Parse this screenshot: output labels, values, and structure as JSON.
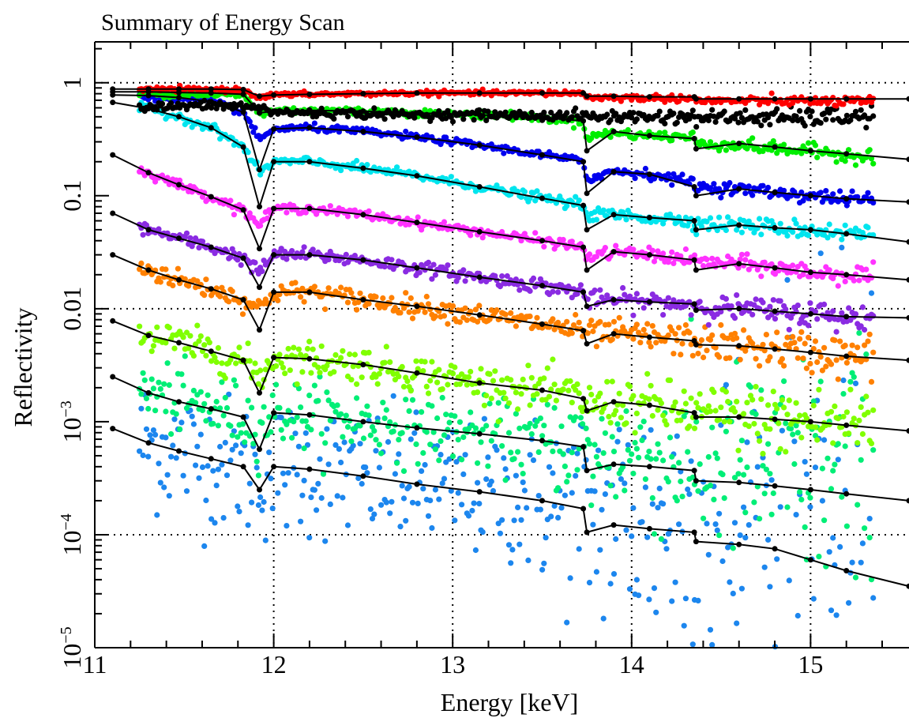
{
  "chart_data": {
    "type": "scatter",
    "title": "Summary of Energy Scan",
    "xlabel": "Energy [keV]",
    "ylabel": "Reflectivity",
    "xlim": [
      11.0,
      15.55
    ],
    "ylim": [
      1e-05,
      2.3
    ],
    "yscale": "log",
    "grid": "dotted lines at x = 12, 13, 14, 15 and y = 1, 0.01, 1e-4",
    "x_ticks": [
      {
        "value": 11,
        "label": "11"
      },
      {
        "value": 12,
        "label": "12"
      },
      {
        "value": 13,
        "label": "13"
      },
      {
        "value": 14,
        "label": "14"
      },
      {
        "value": 15,
        "label": "15"
      }
    ],
    "y_ticks": [
      {
        "value": 1,
        "base": "1",
        "exp": ""
      },
      {
        "value": 0.1,
        "base": "0.1",
        "exp": ""
      },
      {
        "value": 0.01,
        "base": "0.01",
        "exp": ""
      },
      {
        "value": 0.001,
        "base": "10",
        "exp": "−3"
      },
      {
        "value": 0.0001,
        "base": "10",
        "exp": "−4"
      },
      {
        "value": 1e-05,
        "base": "10",
        "exp": "−5"
      }
    ],
    "measured_x_range": [
      11.25,
      15.35
    ],
    "model_energies": [
      11.1,
      11.3,
      11.47,
      11.65,
      11.83,
      11.92,
      12.0,
      12.2,
      12.5,
      12.8,
      13.15,
      13.5,
      13.73,
      13.75,
      13.9,
      14.1,
      14.35,
      14.36,
      14.6,
      14.8,
      15.0,
      15.2,
      15.55
    ],
    "series": [
      {
        "color": "#ff0000",
        "noise": 0.01,
        "measured": [
          0.87,
          0.87,
          0.87,
          0.87,
          0.86,
          0.74,
          0.78,
          0.79,
          0.8,
          0.81,
          0.81,
          0.81,
          0.81,
          0.74,
          0.74,
          0.73,
          0.73,
          0.69,
          0.69,
          0.69,
          0.69,
          0.68,
          0.68
        ],
        "model": [
          0.88,
          0.88,
          0.88,
          0.88,
          0.87,
          0.76,
          0.78,
          0.79,
          0.8,
          0.81,
          0.81,
          0.81,
          0.81,
          0.76,
          0.76,
          0.75,
          0.75,
          0.72,
          0.72,
          0.72,
          0.72,
          0.72,
          0.72
        ]
      },
      {
        "color": "#000000",
        "noise": 0.02,
        "measured": [
          0.56,
          0.6,
          0.62,
          0.63,
          0.62,
          0.6,
          0.55,
          0.54,
          0.53,
          0.52,
          0.52,
          0.51,
          0.51,
          0.5,
          0.5,
          0.5,
          0.5,
          0.49,
          0.49,
          0.49,
          0.49,
          0.5,
          0.51
        ],
        "model": null
      },
      {
        "color": "#00ee00",
        "noise": 0.015,
        "measured": [
          0.8,
          0.8,
          0.8,
          0.79,
          0.78,
          0.53,
          0.57,
          0.57,
          0.56,
          0.54,
          0.52,
          0.49,
          0.45,
          0.33,
          0.36,
          0.34,
          0.33,
          0.29,
          0.28,
          0.26,
          0.25,
          0.23,
          0.22
        ],
        "model": [
          0.83,
          0.83,
          0.82,
          0.81,
          0.79,
          0.54,
          0.56,
          0.57,
          0.56,
          0.54,
          0.52,
          0.49,
          0.46,
          0.25,
          0.37,
          0.34,
          0.32,
          0.26,
          0.29,
          0.27,
          0.25,
          0.235,
          0.21
        ]
      },
      {
        "color": "#0000ee",
        "noise": 0.015,
        "measured": [
          0.76,
          0.75,
          0.73,
          0.68,
          0.55,
          0.31,
          0.39,
          0.4,
          0.37,
          0.33,
          0.28,
          0.23,
          0.2,
          0.14,
          0.165,
          0.155,
          0.13,
          0.12,
          0.115,
          0.107,
          0.1,
          0.094,
          0.09
        ],
        "model": [
          0.78,
          0.77,
          0.74,
          0.68,
          0.55,
          0.17,
          0.39,
          0.4,
          0.37,
          0.33,
          0.28,
          0.23,
          0.2,
          0.105,
          0.163,
          0.155,
          0.12,
          0.1,
          0.115,
          0.107,
          0.1,
          0.094,
          0.088
        ]
      },
      {
        "color": "#00e5ee",
        "noise": 0.02,
        "measured": [
          0.63,
          0.59,
          0.5,
          0.4,
          0.27,
          0.16,
          0.2,
          0.2,
          0.175,
          0.15,
          0.12,
          0.095,
          0.082,
          0.068,
          0.068,
          0.064,
          0.06,
          0.057,
          0.055,
          0.052,
          0.05,
          0.047,
          0.044
        ],
        "model": [
          0.67,
          0.59,
          0.5,
          0.4,
          0.27,
          0.08,
          0.2,
          0.2,
          0.175,
          0.15,
          0.12,
          0.095,
          0.082,
          0.05,
          0.068,
          0.064,
          0.06,
          0.05,
          0.055,
          0.052,
          0.05,
          0.046,
          0.039
        ]
      },
      {
        "color": "#ff33ff",
        "noise": 0.02,
        "measured": [
          0.19,
          0.16,
          0.125,
          0.098,
          0.075,
          0.055,
          0.077,
          0.077,
          0.068,
          0.058,
          0.048,
          0.04,
          0.035,
          0.028,
          0.032,
          0.03,
          0.027,
          0.026,
          0.025,
          0.023,
          0.021,
          0.02,
          0.019
        ],
        "model": [
          0.23,
          0.16,
          0.125,
          0.098,
          0.075,
          0.034,
          0.077,
          0.077,
          0.068,
          0.058,
          0.048,
          0.04,
          0.035,
          0.022,
          0.032,
          0.03,
          0.027,
          0.022,
          0.025,
          0.023,
          0.021,
          0.02,
          0.018
        ]
      },
      {
        "color": "#8a2be2",
        "noise": 0.03,
        "measured": [
          0.063,
          0.05,
          0.042,
          0.035,
          0.028,
          0.021,
          0.03,
          0.03,
          0.027,
          0.023,
          0.019,
          0.016,
          0.014,
          0.012,
          0.012,
          0.0115,
          0.011,
          0.0105,
          0.01,
          0.0095,
          0.009,
          0.0085,
          0.008
        ],
        "model": [
          0.07,
          0.05,
          0.042,
          0.035,
          0.028,
          0.0155,
          0.03,
          0.03,
          0.027,
          0.023,
          0.019,
          0.016,
          0.014,
          0.0105,
          0.012,
          0.0115,
          0.011,
          0.0097,
          0.01,
          0.0095,
          0.009,
          0.0085,
          0.0083
        ]
      },
      {
        "color": "#ff8000",
        "noise": 0.045,
        "measured": [
          0.026,
          0.022,
          0.018,
          0.015,
          0.012,
          0.01,
          0.014,
          0.014,
          0.012,
          0.0105,
          0.0088,
          0.0073,
          0.0064,
          0.006,
          0.006,
          0.0056,
          0.0052,
          0.005,
          0.0047,
          0.0044,
          0.0041,
          0.0038,
          0.0036
        ],
        "model": [
          0.03,
          0.022,
          0.018,
          0.015,
          0.012,
          0.0065,
          0.014,
          0.014,
          0.012,
          0.0105,
          0.0088,
          0.0073,
          0.0064,
          0.0049,
          0.006,
          0.0056,
          0.0052,
          0.0048,
          0.0047,
          0.0044,
          0.0041,
          0.0038,
          0.0035
        ]
      },
      {
        "color": "#80ff00",
        "noise": 0.08,
        "measured": [
          0.0065,
          0.0058,
          0.005,
          0.0042,
          0.0035,
          0.0025,
          0.0037,
          0.0036,
          0.0032,
          0.0027,
          0.0022,
          0.0019,
          0.0016,
          0.0014,
          0.0015,
          0.0014,
          0.0012,
          0.0012,
          0.0011,
          0.00105,
          0.001,
          0.00098,
          0.00095
        ],
        "model": [
          0.0078,
          0.0058,
          0.005,
          0.0042,
          0.0035,
          0.0018,
          0.0037,
          0.0036,
          0.0032,
          0.0027,
          0.0022,
          0.0019,
          0.0016,
          0.00125,
          0.0015,
          0.0014,
          0.0012,
          0.0011,
          0.0011,
          0.00105,
          0.001,
          0.00093,
          0.00083
        ]
      },
      {
        "color": "#00ee76",
        "noise": 0.15,
        "measured": [
          0.0022,
          0.0018,
          0.0015,
          0.0013,
          0.0011,
          0.0009,
          0.0012,
          0.00115,
          0.001,
          0.00088,
          0.00078,
          0.00068,
          0.0006,
          0.00045,
          0.00055,
          0.0005,
          0.00045,
          0.00042,
          0.0004,
          0.00038,
          0.00036,
          0.00034,
          0.00032
        ],
        "model": [
          0.0025,
          0.0018,
          0.0015,
          0.0013,
          0.0011,
          0.00057,
          0.0012,
          0.00115,
          0.001,
          0.00088,
          0.00078,
          0.00068,
          0.0006,
          0.00037,
          0.00042,
          0.0004,
          0.00037,
          0.0003,
          0.00029,
          0.00027,
          0.00025,
          0.00023,
          0.0002
        ]
      },
      {
        "color": "#1c86ee",
        "noise": 0.3,
        "measured": [
          0.00078,
          0.00065,
          0.00055,
          0.00047,
          0.0004,
          0.00032,
          0.0004,
          0.00038,
          0.00033,
          0.00028,
          0.00024,
          0.0002,
          0.00017,
          0.00015,
          0.00015,
          0.00014,
          0.00013,
          0.00012,
          0.00011,
          0.0001,
          9.5e-05,
          9e-05,
          8.5e-05
        ],
        "model": [
          0.00087,
          0.00065,
          0.00055,
          0.00047,
          0.0004,
          0.00025,
          0.0004,
          0.00038,
          0.00033,
          0.00028,
          0.00024,
          0.0002,
          0.00017,
          0.000105,
          0.000122,
          0.000113,
          0.000105,
          8.7e-05,
          8.2e-05,
          7.5e-05,
          6e-05,
          4.8e-05,
          3.5e-05
        ]
      }
    ]
  }
}
